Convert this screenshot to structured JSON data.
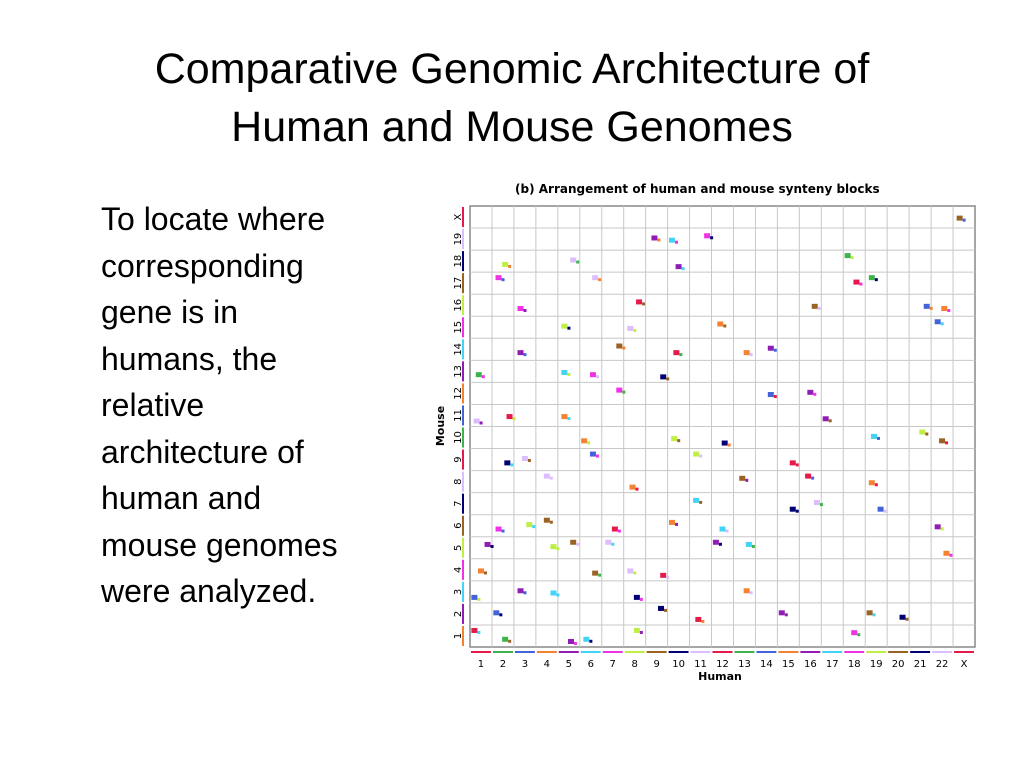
{
  "slide": {
    "title_lines": [
      "Comparative Genomic Architecture of",
      "Human and Mouse Genomes"
    ],
    "body_lines": [
      "To locate where",
      "corresponding",
      "gene is in",
      "humans, the",
      "relative",
      "architecture of",
      "human and",
      "mouse genomes",
      "were analyzed."
    ]
  },
  "figure": {
    "title": "(b) Arrangement of human and mouse synteny blocks",
    "x_label": "Human",
    "y_label": "Mouse",
    "x_ticks": [
      "1",
      "2",
      "3",
      "4",
      "5",
      "6",
      "7",
      "8",
      "9",
      "10",
      "11",
      "12",
      "13",
      "14",
      "15",
      "16",
      "17",
      "18",
      "19",
      "20",
      "21",
      "22",
      "X"
    ],
    "y_ticks": [
      "1",
      "2",
      "3",
      "4",
      "5",
      "6",
      "7",
      "8",
      "9",
      "10",
      "11",
      "12",
      "13",
      "14",
      "15",
      "16",
      "17",
      "18",
      "19",
      "X"
    ],
    "colors": [
      "#e6194b",
      "#3cb44b",
      "#4363d8",
      "#f58231",
      "#911eb4",
      "#42d4f4",
      "#f032e6",
      "#bfef45",
      "#9a6324",
      "#000075",
      "#dcbeff"
    ]
  },
  "chart_data": {
    "type": "scatter",
    "title": "(b) Arrangement of human and mouse synteny blocks",
    "xlabel": "Human",
    "ylabel": "Mouse",
    "x_categories": [
      "1",
      "2",
      "3",
      "4",
      "5",
      "6",
      "7",
      "8",
      "9",
      "10",
      "11",
      "12",
      "13",
      "14",
      "15",
      "16",
      "17",
      "18",
      "19",
      "20",
      "21",
      "22",
      "X"
    ],
    "y_categories": [
      "1",
      "2",
      "3",
      "4",
      "5",
      "6",
      "7",
      "8",
      "9",
      "10",
      "11",
      "12",
      "13",
      "14",
      "15",
      "16",
      "17",
      "18",
      "19",
      "X"
    ],
    "grid": true,
    "blocks": [
      {
        "human": "1",
        "mouse": "1"
      },
      {
        "human": "1",
        "mouse": "3"
      },
      {
        "human": "1",
        "mouse": "4"
      },
      {
        "human": "1",
        "mouse": "5"
      },
      {
        "human": "1",
        "mouse": "11"
      },
      {
        "human": "1",
        "mouse": "13"
      },
      {
        "human": "2",
        "mouse": "1"
      },
      {
        "human": "2",
        "mouse": "2"
      },
      {
        "human": "2",
        "mouse": "6"
      },
      {
        "human": "2",
        "mouse": "9"
      },
      {
        "human": "2",
        "mouse": "11"
      },
      {
        "human": "2",
        "mouse": "17"
      },
      {
        "human": "2",
        "mouse": "18"
      },
      {
        "human": "3",
        "mouse": "3"
      },
      {
        "human": "3",
        "mouse": "6"
      },
      {
        "human": "3",
        "mouse": "9"
      },
      {
        "human": "3",
        "mouse": "14"
      },
      {
        "human": "3",
        "mouse": "16"
      },
      {
        "human": "4",
        "mouse": "3"
      },
      {
        "human": "4",
        "mouse": "5"
      },
      {
        "human": "4",
        "mouse": "6"
      },
      {
        "human": "4",
        "mouse": "8"
      },
      {
        "human": "5",
        "mouse": "1"
      },
      {
        "human": "5",
        "mouse": "5"
      },
      {
        "human": "5",
        "mouse": "11"
      },
      {
        "human": "5",
        "mouse": "13"
      },
      {
        "human": "5",
        "mouse": "15"
      },
      {
        "human": "5",
        "mouse": "18"
      },
      {
        "human": "6",
        "mouse": "1"
      },
      {
        "human": "6",
        "mouse": "4"
      },
      {
        "human": "6",
        "mouse": "9"
      },
      {
        "human": "6",
        "mouse": "10"
      },
      {
        "human": "6",
        "mouse": "13"
      },
      {
        "human": "6",
        "mouse": "17"
      },
      {
        "human": "7",
        "mouse": "5"
      },
      {
        "human": "7",
        "mouse": "6"
      },
      {
        "human": "7",
        "mouse": "12"
      },
      {
        "human": "7",
        "mouse": "14"
      },
      {
        "human": "8",
        "mouse": "1"
      },
      {
        "human": "8",
        "mouse": "3"
      },
      {
        "human": "8",
        "mouse": "4"
      },
      {
        "human": "8",
        "mouse": "8"
      },
      {
        "human": "8",
        "mouse": "15"
      },
      {
        "human": "8",
        "mouse": "16"
      },
      {
        "human": "9",
        "mouse": "2"
      },
      {
        "human": "9",
        "mouse": "4"
      },
      {
        "human": "9",
        "mouse": "13"
      },
      {
        "human": "9",
        "mouse": "19"
      },
      {
        "human": "10",
        "mouse": "6"
      },
      {
        "human": "10",
        "mouse": "10"
      },
      {
        "human": "10",
        "mouse": "14"
      },
      {
        "human": "10",
        "mouse": "18"
      },
      {
        "human": "10",
        "mouse": "19"
      },
      {
        "human": "11",
        "mouse": "2"
      },
      {
        "human": "11",
        "mouse": "7"
      },
      {
        "human": "11",
        "mouse": "9"
      },
      {
        "human": "11",
        "mouse": "19"
      },
      {
        "human": "12",
        "mouse": "5"
      },
      {
        "human": "12",
        "mouse": "6"
      },
      {
        "human": "12",
        "mouse": "10"
      },
      {
        "human": "12",
        "mouse": "15"
      },
      {
        "human": "13",
        "mouse": "3"
      },
      {
        "human": "13",
        "mouse": "5"
      },
      {
        "human": "13",
        "mouse": "8"
      },
      {
        "human": "13",
        "mouse": "14"
      },
      {
        "human": "14",
        "mouse": "12"
      },
      {
        "human": "14",
        "mouse": "14"
      },
      {
        "human": "15",
        "mouse": "2"
      },
      {
        "human": "15",
        "mouse": "7"
      },
      {
        "human": "15",
        "mouse": "9"
      },
      {
        "human": "16",
        "mouse": "7"
      },
      {
        "human": "16",
        "mouse": "8"
      },
      {
        "human": "16",
        "mouse": "12"
      },
      {
        "human": "16",
        "mouse": "16"
      },
      {
        "human": "17",
        "mouse": "11"
      },
      {
        "human": "18",
        "mouse": "1"
      },
      {
        "human": "18",
        "mouse": "17"
      },
      {
        "human": "18",
        "mouse": "18"
      },
      {
        "human": "19",
        "mouse": "2"
      },
      {
        "human": "19",
        "mouse": "7"
      },
      {
        "human": "19",
        "mouse": "8"
      },
      {
        "human": "19",
        "mouse": "10"
      },
      {
        "human": "19",
        "mouse": "17"
      },
      {
        "human": "20",
        "mouse": "2"
      },
      {
        "human": "21",
        "mouse": "10"
      },
      {
        "human": "21",
        "mouse": "16"
      },
      {
        "human": "22",
        "mouse": "5"
      },
      {
        "human": "22",
        "mouse": "6"
      },
      {
        "human": "22",
        "mouse": "10"
      },
      {
        "human": "22",
        "mouse": "15"
      },
      {
        "human": "22",
        "mouse": "16"
      },
      {
        "human": "X",
        "mouse": "X"
      }
    ]
  }
}
